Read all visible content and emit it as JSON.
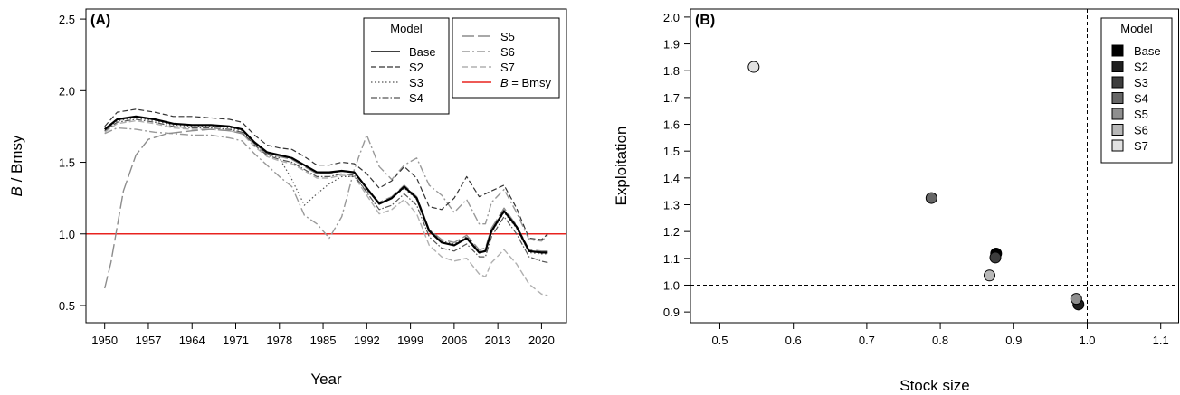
{
  "chart_data": [
    {
      "type": "line",
      "panel_label": "(A)",
      "xlabel": "Year",
      "ylabel_italic": "B",
      "ylabel_rest": " / Bmsy",
      "xlim": [
        1947,
        2024
      ],
      "ylim": [
        0.38,
        2.57
      ],
      "xticks": [
        1950,
        1957,
        1964,
        1971,
        1978,
        1985,
        1992,
        1999,
        2006,
        2013,
        2020
      ],
      "yticks": [
        0.5,
        1.0,
        1.5,
        2.0,
        2.5
      ],
      "ytick_labels": [
        "0.5",
        "1.0",
        "1.5",
        "2.0",
        "2.5"
      ],
      "legend_title": "Model",
      "legend_placement": "top-right",
      "reference_line": {
        "value": 1.0,
        "label_italic": "B",
        "label_rest": " = Bmsy",
        "color": "#e8231f"
      },
      "series": [
        {
          "name": "Base",
          "color": "#000000",
          "dash": "",
          "width": 2.2,
          "x": [
            1950,
            1952,
            1955,
            1958,
            1961,
            1964,
            1967,
            1970,
            1972,
            1974,
            1976,
            1978,
            1980,
            1982,
            1984,
            1986,
            1988,
            1990,
            1992,
            1994,
            1996,
            1998,
            2000,
            2002,
            2004,
            2006,
            2008,
            2010,
            2011,
            2012,
            2014,
            2016,
            2018,
            2020,
            2021
          ],
          "y": [
            1.73,
            1.8,
            1.82,
            1.8,
            1.77,
            1.76,
            1.76,
            1.75,
            1.73,
            1.64,
            1.57,
            1.55,
            1.53,
            1.48,
            1.43,
            1.43,
            1.44,
            1.43,
            1.32,
            1.21,
            1.25,
            1.33,
            1.25,
            1.02,
            0.94,
            0.92,
            0.97,
            0.87,
            0.88,
            1.02,
            1.16,
            1.05,
            0.88,
            0.87,
            0.87
          ]
        },
        {
          "name": "S2",
          "color": "#333333",
          "dash": "6,3",
          "width": 1.2,
          "x": [
            1950,
            1952,
            1955,
            1958,
            1961,
            1964,
            1967,
            1970,
            1972,
            1974,
            1976,
            1978,
            1980,
            1982,
            1984,
            1986,
            1988,
            1990,
            1992,
            1994,
            1996,
            1998,
            2000,
            2002,
            2004,
            2006,
            2008,
            2010,
            2011,
            2012,
            2014,
            2016,
            2018,
            2020,
            2021
          ],
          "y": [
            1.75,
            1.85,
            1.87,
            1.85,
            1.82,
            1.82,
            1.81,
            1.8,
            1.78,
            1.69,
            1.62,
            1.6,
            1.59,
            1.54,
            1.48,
            1.48,
            1.5,
            1.49,
            1.42,
            1.32,
            1.37,
            1.47,
            1.39,
            1.19,
            1.17,
            1.25,
            1.4,
            1.26,
            1.28,
            1.3,
            1.34,
            1.18,
            0.97,
            0.96,
            1.0
          ]
        },
        {
          "name": "S3",
          "color": "#555555",
          "dash": "1.5,2.5",
          "width": 1.2,
          "x": [
            1950,
            1952,
            1955,
            1958,
            1961,
            1964,
            1967,
            1970,
            1972,
            1974,
            1976,
            1978,
            1980,
            1982,
            1984,
            1986,
            1988,
            1990,
            1992,
            1994,
            1996,
            1998,
            2000,
            2002,
            2004,
            2006,
            2008,
            2010,
            2011,
            2012,
            2014,
            2016,
            2018,
            2020,
            2021
          ],
          "y": [
            1.72,
            1.79,
            1.81,
            1.79,
            1.76,
            1.75,
            1.75,
            1.74,
            1.72,
            1.63,
            1.56,
            1.53,
            1.38,
            1.2,
            1.28,
            1.35,
            1.4,
            1.4,
            1.3,
            1.22,
            1.25,
            1.32,
            1.24,
            1.03,
            0.95,
            0.93,
            0.98,
            0.88,
            0.88,
            1.01,
            1.15,
            1.04,
            0.87,
            0.86,
            0.86
          ]
        },
        {
          "name": "S4",
          "color": "#555555",
          "dash": "7,2,1.5,2",
          "width": 1.2,
          "x": [
            1950,
            1952,
            1955,
            1958,
            1961,
            1964,
            1967,
            1970,
            1972,
            1974,
            1976,
            1978,
            1980,
            1982,
            1984,
            1986,
            1988,
            1990,
            1992,
            1994,
            1996,
            1998,
            2000,
            2002,
            2004,
            2006,
            2008,
            2010,
            2011,
            2012,
            2014,
            2016,
            2018,
            2020,
            2021
          ],
          "y": [
            1.72,
            1.78,
            1.8,
            1.78,
            1.75,
            1.74,
            1.74,
            1.73,
            1.71,
            1.62,
            1.55,
            1.52,
            1.5,
            1.45,
            1.4,
            1.4,
            1.42,
            1.41,
            1.29,
            1.17,
            1.2,
            1.28,
            1.2,
            0.98,
            0.9,
            0.88,
            0.93,
            0.84,
            0.84,
            0.98,
            1.12,
            1.0,
            0.84,
            0.81,
            0.8
          ]
        },
        {
          "name": "S5",
          "color": "#8c8c8c",
          "dash": "14,4",
          "width": 1.4,
          "x": [
            1950,
            1951,
            1952,
            1953,
            1955,
            1957,
            1960,
            1964,
            1967,
            1970,
            1972,
            1974,
            1976,
            1978,
            1980,
            1982,
            1984,
            1986,
            1988,
            1990,
            1992,
            1994,
            1996,
            1998,
            2000,
            2002,
            2004,
            2006,
            2008,
            2010,
            2011,
            2012,
            2014,
            2016,
            2018,
            2020,
            2021
          ],
          "y": [
            0.62,
            0.8,
            1.05,
            1.3,
            1.55,
            1.66,
            1.7,
            1.72,
            1.73,
            1.72,
            1.7,
            1.63,
            1.56,
            1.54,
            1.52,
            1.47,
            1.42,
            1.42,
            1.44,
            1.43,
            1.32,
            1.22,
            1.26,
            1.34,
            1.26,
            1.03,
            0.96,
            0.94,
            0.99,
            0.89,
            0.9,
            1.04,
            1.18,
            1.06,
            0.89,
            0.88,
            0.88
          ]
        },
        {
          "name": "S6",
          "color": "#999999",
          "dash": "9,3,2,3",
          "width": 1.4,
          "x": [
            1950,
            1952,
            1955,
            1958,
            1961,
            1964,
            1967,
            1970,
            1972,
            1974,
            1976,
            1978,
            1980,
            1982,
            1984,
            1986,
            1988,
            1990,
            1992,
            1994,
            1996,
            1998,
            2000,
            2002,
            2004,
            2006,
            2008,
            2010,
            2011,
            2012,
            2014,
            2016,
            2018,
            2020,
            2021
          ],
          "y": [
            1.7,
            1.74,
            1.73,
            1.71,
            1.7,
            1.69,
            1.69,
            1.67,
            1.65,
            1.56,
            1.48,
            1.4,
            1.33,
            1.13,
            1.07,
            0.97,
            1.12,
            1.45,
            1.69,
            1.47,
            1.38,
            1.48,
            1.53,
            1.34,
            1.27,
            1.15,
            1.24,
            1.07,
            1.07,
            1.22,
            1.31,
            1.15,
            0.96,
            0.95,
            0.99
          ]
        },
        {
          "name": "S7",
          "color": "#b0b0b0",
          "dash": "7,3",
          "width": 1.4,
          "x": [
            1950,
            1952,
            1955,
            1958,
            1961,
            1964,
            1967,
            1970,
            1972,
            1974,
            1976,
            1978,
            1980,
            1982,
            1984,
            1986,
            1988,
            1990,
            1992,
            1994,
            1996,
            1998,
            2000,
            2002,
            2004,
            2006,
            2008,
            2010,
            2011,
            2012,
            2014,
            2016,
            2018,
            2020,
            2021
          ],
          "y": [
            1.71,
            1.77,
            1.79,
            1.77,
            1.74,
            1.73,
            1.73,
            1.72,
            1.7,
            1.61,
            1.54,
            1.51,
            1.49,
            1.44,
            1.39,
            1.39,
            1.41,
            1.4,
            1.27,
            1.14,
            1.17,
            1.24,
            1.14,
            0.92,
            0.84,
            0.81,
            0.83,
            0.72,
            0.7,
            0.8,
            0.89,
            0.79,
            0.65,
            0.58,
            0.57
          ]
        }
      ]
    },
    {
      "type": "scatter",
      "panel_label": "(B)",
      "xlabel": "Stock size",
      "ylabel": "Exploitation",
      "xlim": [
        0.46,
        1.125
      ],
      "ylim": [
        0.86,
        2.03
      ],
      "xticks": [
        0.5,
        0.6,
        0.7,
        0.8,
        0.9,
        1.0,
        1.1
      ],
      "xtick_labels": [
        "0.5",
        "0.6",
        "0.7",
        "0.8",
        "0.9",
        "1.0",
        "1.1"
      ],
      "yticks": [
        0.9,
        1.0,
        1.1,
        1.2,
        1.3,
        1.4,
        1.5,
        1.6,
        1.7,
        1.8,
        1.9,
        2.0
      ],
      "ytick_labels": [
        "0.9",
        "1.0",
        "1.1",
        "1.2",
        "1.3",
        "1.4",
        "1.5",
        "1.6",
        "1.7",
        "1.8",
        "1.9",
        "2.0"
      ],
      "reference_x": 1.0,
      "reference_y": 1.0,
      "legend_title": "Model",
      "legend_placement": "top-right",
      "points": [
        {
          "name": "Base",
          "x": 0.876,
          "y": 1.118,
          "color": "#000000"
        },
        {
          "name": "S2",
          "x": 0.988,
          "y": 0.928,
          "color": "#1f1f1f"
        },
        {
          "name": "S3",
          "x": 0.875,
          "y": 1.103,
          "color": "#3d3d3d"
        },
        {
          "name": "S4",
          "x": 0.788,
          "y": 1.325,
          "color": "#666666"
        },
        {
          "name": "S5",
          "x": 0.985,
          "y": 0.949,
          "color": "#8f8f8f"
        },
        {
          "name": "S6",
          "x": 0.867,
          "y": 1.036,
          "color": "#b8b8b8"
        },
        {
          "name": "S7",
          "x": 0.546,
          "y": 1.814,
          "color": "#e2e2e2"
        }
      ]
    }
  ]
}
